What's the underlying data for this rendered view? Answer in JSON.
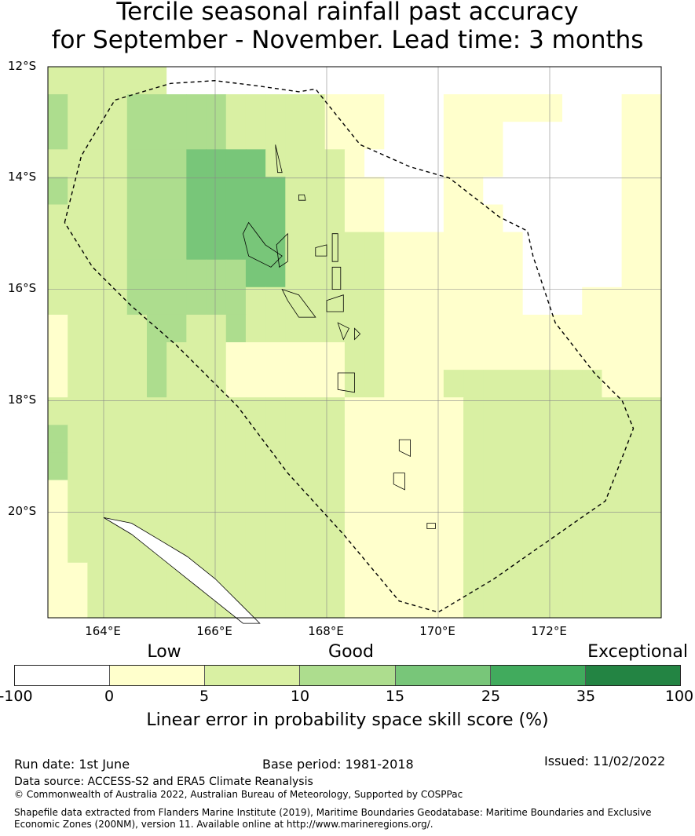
{
  "title": {
    "line1": "Tercile seasonal rainfall past accuracy",
    "line2": "for September - November. Lead time: 3 months"
  },
  "map": {
    "lat_labels": [
      "12°S",
      "14°S",
      "16°S",
      "18°S",
      "20°S"
    ],
    "lon_labels": [
      "164°E",
      "166°E",
      "168°E",
      "170°E",
      "172°E"
    ],
    "lat_range": [
      -21.9,
      -12.0
    ],
    "lon_range": [
      163.0,
      174.0
    ],
    "cell_size_deg": 0.83,
    "colors": [
      "#ffffff",
      "#ffffcc",
      "#d9f0a3",
      "#addd8e",
      "#78c679",
      "#41ab5d",
      "#238443"
    ],
    "grid_rows": [
      "2222220000000000000000000000000",
      "3222333332222211100011111100011",
      "3222333332222211100011100000011",
      "2222333444422221000011100000011",
      "3222333444442221100011000000011",
      "2222333444442221100011100000011",
      "2222333444442222211111110000011",
      "2222333333442222211111110000011",
      "2222333333222222211111110001111",
      "1222233223222222211111111111111",
      "1222232221111112211111111111111",
      "1222232221111112211122222222111",
      "2222222222222221111112222222222",
      "3222222222222221111112222222222",
      "3222222222222221111112222222222",
      "1222222222222221111112222222222",
      "1222222222222221111112222222222",
      "1222222222222221111112222222222",
      "1122222222222221111112222222222",
      "1122222222222221111112222222222"
    ],
    "eez_boundary": [
      [
        163.3,
        -14.8
      ],
      [
        163.6,
        -13.6
      ],
      [
        164.2,
        -12.6
      ],
      [
        165.2,
        -12.3
      ],
      [
        166.0,
        -12.25
      ],
      [
        166.8,
        -12.35
      ],
      [
        167.5,
        -12.45
      ],
      [
        167.8,
        -12.4
      ],
      [
        168.6,
        -13.4
      ],
      [
        169.5,
        -13.8
      ],
      [
        170.2,
        -14.0
      ],
      [
        171.1,
        -14.7
      ],
      [
        171.6,
        -14.95
      ],
      [
        171.7,
        -15.4
      ],
      [
        172.1,
        -16.6
      ],
      [
        172.8,
        -17.5
      ],
      [
        173.3,
        -18.0
      ],
      [
        173.5,
        -18.5
      ],
      [
        173.0,
        -19.8
      ],
      [
        172.0,
        -20.5
      ],
      [
        171.0,
        -21.2
      ],
      [
        170.0,
        -21.8
      ],
      [
        169.3,
        -21.6
      ],
      [
        168.3,
        -20.4
      ],
      [
        167.3,
        -19.3
      ],
      [
        166.4,
        -18.1
      ],
      [
        165.3,
        -17.0
      ],
      [
        164.5,
        -16.3
      ],
      [
        163.8,
        -15.6
      ],
      [
        163.3,
        -14.8
      ]
    ],
    "vanuatu_islands": [
      [
        [
          167.08,
          -13.4
        ],
        [
          167.12,
          -13.9
        ],
        [
          167.2,
          -13.9
        ]
      ],
      [
        [
          167.5,
          -14.3
        ],
        [
          167.6,
          -14.3
        ],
        [
          167.62,
          -14.4
        ],
        [
          167.5,
          -14.4
        ]
      ],
      [
        [
          166.6,
          -14.8
        ],
        [
          166.9,
          -15.2
        ],
        [
          167.2,
          -15.4
        ],
        [
          167.0,
          -15.6
        ],
        [
          166.6,
          -15.4
        ],
        [
          166.5,
          -15.0
        ]
      ],
      [
        [
          167.1,
          -15.2
        ],
        [
          167.3,
          -15.0
        ],
        [
          167.3,
          -15.5
        ],
        [
          167.15,
          -15.6
        ]
      ],
      [
        [
          167.8,
          -15.25
        ],
        [
          168.0,
          -15.2
        ],
        [
          168.0,
          -15.4
        ],
        [
          167.8,
          -15.4
        ]
      ],
      [
        [
          168.1,
          -15.0
        ],
        [
          168.2,
          -15.0
        ],
        [
          168.2,
          -15.5
        ],
        [
          168.1,
          -15.5
        ]
      ],
      [
        [
          168.1,
          -15.6
        ],
        [
          168.25,
          -15.6
        ],
        [
          168.25,
          -16.0
        ],
        [
          168.1,
          -16.0
        ]
      ],
      [
        [
          167.2,
          -16.0
        ],
        [
          167.5,
          -16.1
        ],
        [
          167.8,
          -16.5
        ],
        [
          167.5,
          -16.5
        ],
        [
          167.3,
          -16.2
        ]
      ],
      [
        [
          168.0,
          -16.2
        ],
        [
          168.3,
          -16.1
        ],
        [
          168.3,
          -16.4
        ],
        [
          168.0,
          -16.4
        ]
      ],
      [
        [
          168.2,
          -16.6
        ],
        [
          168.4,
          -16.7
        ],
        [
          168.3,
          -16.9
        ]
      ],
      [
        [
          168.5,
          -16.7
        ],
        [
          168.6,
          -16.8
        ],
        [
          168.5,
          -16.9
        ]
      ],
      [
        [
          168.2,
          -17.5
        ],
        [
          168.5,
          -17.5
        ],
        [
          168.5,
          -17.85
        ],
        [
          168.2,
          -17.8
        ]
      ],
      [
        [
          169.3,
          -18.7
        ],
        [
          169.5,
          -18.7
        ],
        [
          169.5,
          -19.0
        ],
        [
          169.3,
          -18.9
        ]
      ],
      [
        [
          169.2,
          -19.3
        ],
        [
          169.4,
          -19.3
        ],
        [
          169.4,
          -19.6
        ],
        [
          169.2,
          -19.5
        ]
      ],
      [
        [
          169.8,
          -20.2
        ],
        [
          169.95,
          -20.2
        ],
        [
          169.95,
          -20.3
        ],
        [
          169.8,
          -20.3
        ]
      ]
    ],
    "new_caledonia": [
      [
        164.0,
        -20.1
      ],
      [
        164.5,
        -20.4
      ],
      [
        165.0,
        -20.8
      ],
      [
        165.5,
        -21.2
      ],
      [
        166.0,
        -21.6
      ],
      [
        166.5,
        -22.0
      ],
      [
        166.8,
        -22.0
      ],
      [
        166.4,
        -21.6
      ],
      [
        166.0,
        -21.2
      ],
      [
        165.5,
        -20.8
      ],
      [
        165.0,
        -20.5
      ],
      [
        164.5,
        -20.2
      ],
      [
        164.0,
        -20.1
      ]
    ]
  },
  "colorbar": {
    "category_labels": [
      "Low",
      "Good",
      "Exceptional"
    ],
    "tick_labels": [
      "-100",
      "0",
      "5",
      "10",
      "15",
      "25",
      "35",
      "100"
    ],
    "colors": [
      "#ffffff",
      "#ffffcc",
      "#d9f0a3",
      "#addd8e",
      "#78c679",
      "#41ab5d",
      "#238443"
    ],
    "title": "Linear error in probability space skill score (%)"
  },
  "footer": {
    "run_date": "Run date: 1st June",
    "base_period": "Base period: 1981-2018",
    "issued": "Issued: 11/02/2022",
    "data_source": "Data source: ACCESS-S2 and ERA5 Climate Reanalysis",
    "copyright": "© Commonwealth of Australia 2022, Australian Bureau of Meteorology, Supported by COSPPac",
    "shapefile_line1": "Shapefile data extracted from Flanders Marine Institute (2019), Maritime Boundaries Geodatabase: Maritime Boundaries and Exclusive",
    "shapefile_line2": "Economic Zones (200NM), version 11. Available online at http://www.marineregions.org/."
  }
}
